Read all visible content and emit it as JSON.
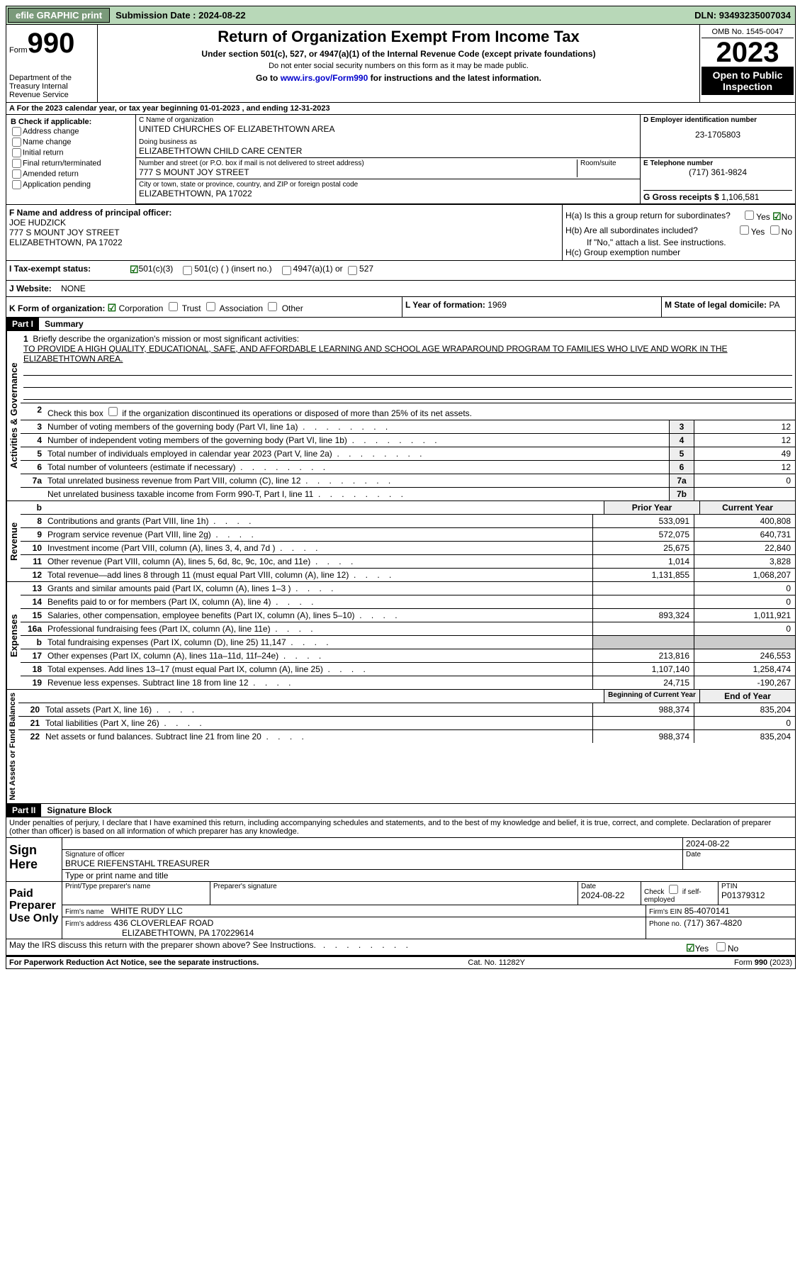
{
  "topbar": {
    "efile": "efile GRAPHIC print",
    "submission_label": "Submission Date :",
    "submission_date": "2024-08-22",
    "dln_label": "DLN:",
    "dln": "93493235007034"
  },
  "header": {
    "form_word": "Form",
    "form_num": "990",
    "dept": "Department of the Treasury Internal Revenue Service",
    "title": "Return of Organization Exempt From Income Tax",
    "sub1": "Under section 501(c), 527, or 4947(a)(1) of the Internal Revenue Code (except private foundations)",
    "sub2": "Do not enter social security numbers on this form as it may be made public.",
    "sub3_pre": "Go to ",
    "sub3_link": "www.irs.gov/Form990",
    "sub3_post": " for instructions and the latest information.",
    "omb": "OMB No. 1545-0047",
    "year": "2023",
    "open": "Open to Public Inspection"
  },
  "rowA": "A For the 2023 calendar year, or tax year beginning 01-01-2023   , and ending 12-31-2023",
  "colB": {
    "title": "B Check if applicable:",
    "opts": [
      "Address change",
      "Name change",
      "Initial return",
      "Final return/terminated",
      "Amended return",
      "Application pending"
    ]
  },
  "colC": {
    "name_label": "C Name of organization",
    "name": "UNITED CHURCHES OF ELIZABETHTOWN AREA",
    "dba_label": "Doing business as",
    "dba": "ELIZABETHTOWN CHILD CARE CENTER",
    "street_label": "Number and street (or P.O. box if mail is not delivered to street address)",
    "room_label": "Room/suite",
    "street": "777 S MOUNT JOY STREET",
    "city_label": "City or town, state or province, country, and ZIP or foreign postal code",
    "city": "ELIZABETHTOWN, PA  17022"
  },
  "colD": {
    "ein_label": "D Employer identification number",
    "ein": "23-1705803",
    "phone_label": "E Telephone number",
    "phone": "(717) 361-9824",
    "gross_label": "G Gross receipts $",
    "gross": "1,106,581"
  },
  "secF": {
    "label": "F  Name and address of principal officer:",
    "name": "JOE HUDZICK",
    "street": "777 S MOUNT JOY STREET",
    "city": "ELIZABETHTOWN, PA  17022"
  },
  "secH": {
    "ha": "H(a)  Is this a group return for subordinates?",
    "hb": "H(b)  Are all subordinates included?",
    "hb_note": "If \"No,\" attach a list. See instructions.",
    "hc": "H(c)  Group exemption number",
    "yes": "Yes",
    "no": "No"
  },
  "secI": {
    "label": "I   Tax-exempt status:",
    "c3": "501(c)(3)",
    "c": "501(c) (  ) (insert no.)",
    "a1": "4947(a)(1) or",
    "s527": "527"
  },
  "secJ": {
    "label": "J   Website:",
    "val": "NONE"
  },
  "secK": {
    "label": "K Form of organization:",
    "corp": "Corporation",
    "trust": "Trust",
    "assoc": "Association",
    "other": "Other"
  },
  "secL": {
    "label": "L Year of formation:",
    "val": "1969"
  },
  "secM": {
    "label": "M State of legal domicile:",
    "val": "PA"
  },
  "part1": {
    "hdr": "Part I",
    "title": "Summary",
    "q1": "Briefly describe the organization's mission or most significant activities:",
    "mission": "TO PROVIDE A HIGH QUALITY, EDUCATIONAL, SAFE, AND AFFORDABLE LEARNING AND SCHOOL AGE WRAPAROUND PROGRAM TO FAMILIES WHO LIVE AND WORK IN THE ELIZABETHTOWN AREA.",
    "q2": "Check this box      if the organization discontinued its operations or disposed of more than 25% of its net assets.",
    "side_ag": "Activities & Governance",
    "side_rev": "Revenue",
    "side_exp": "Expenses",
    "side_na": "Net Assets or Fund Balances",
    "lines_ag": [
      {
        "n": "3",
        "t": "Number of voting members of the governing body (Part VI, line 1a)",
        "box": "3",
        "v": "12"
      },
      {
        "n": "4",
        "t": "Number of independent voting members of the governing body (Part VI, line 1b)",
        "box": "4",
        "v": "12"
      },
      {
        "n": "5",
        "t": "Total number of individuals employed in calendar year 2023 (Part V, line 2a)",
        "box": "5",
        "v": "49"
      },
      {
        "n": "6",
        "t": "Total number of volunteers (estimate if necessary)",
        "box": "6",
        "v": "12"
      },
      {
        "n": "7a",
        "t": "Total unrelated business revenue from Part VIII, column (C), line 12",
        "box": "7a",
        "v": "0"
      },
      {
        "n": "",
        "t": "Net unrelated business taxable income from Form 990-T, Part I, line 11",
        "box": "7b",
        "v": ""
      }
    ],
    "hdr_b": "b",
    "hdr_prior": "Prior Year",
    "hdr_curr": "Current Year",
    "lines_rev": [
      {
        "n": "8",
        "t": "Contributions and grants (Part VIII, line 1h)",
        "p": "533,091",
        "c": "400,808"
      },
      {
        "n": "9",
        "t": "Program service revenue (Part VIII, line 2g)",
        "p": "572,075",
        "c": "640,731"
      },
      {
        "n": "10",
        "t": "Investment income (Part VIII, column (A), lines 3, 4, and 7d )",
        "p": "25,675",
        "c": "22,840"
      },
      {
        "n": "11",
        "t": "Other revenue (Part VIII, column (A), lines 5, 6d, 8c, 9c, 10c, and 11e)",
        "p": "1,014",
        "c": "3,828"
      },
      {
        "n": "12",
        "t": "Total revenue—add lines 8 through 11 (must equal Part VIII, column (A), line 12)",
        "p": "1,131,855",
        "c": "1,068,207"
      }
    ],
    "lines_exp": [
      {
        "n": "13",
        "t": "Grants and similar amounts paid (Part IX, column (A), lines 1–3 )",
        "p": "",
        "c": "0"
      },
      {
        "n": "14",
        "t": "Benefits paid to or for members (Part IX, column (A), line 4)",
        "p": "",
        "c": "0"
      },
      {
        "n": "15",
        "t": "Salaries, other compensation, employee benefits (Part IX, column (A), lines 5–10)",
        "p": "893,324",
        "c": "1,011,921"
      },
      {
        "n": "16a",
        "t": "Professional fundraising fees (Part IX, column (A), line 11e)",
        "p": "",
        "c": "0"
      },
      {
        "n": "b",
        "t": "Total fundraising expenses (Part IX, column (D), line 25) 11,147",
        "p": "grey",
        "c": "grey"
      },
      {
        "n": "17",
        "t": "Other expenses (Part IX, column (A), lines 11a–11d, 11f–24e)",
        "p": "213,816",
        "c": "246,553"
      },
      {
        "n": "18",
        "t": "Total expenses. Add lines 13–17 (must equal Part IX, column (A), line 25)",
        "p": "1,107,140",
        "c": "1,258,474"
      },
      {
        "n": "19",
        "t": "Revenue less expenses. Subtract line 18 from line 12",
        "p": "24,715",
        "c": "-190,267"
      }
    ],
    "hdr_beg": "Beginning of Current Year",
    "hdr_end": "End of Year",
    "lines_na": [
      {
        "n": "20",
        "t": "Total assets (Part X, line 16)",
        "p": "988,374",
        "c": "835,204"
      },
      {
        "n": "21",
        "t": "Total liabilities (Part X, line 26)",
        "p": "",
        "c": "0"
      },
      {
        "n": "22",
        "t": "Net assets or fund balances. Subtract line 21 from line 20",
        "p": "988,374",
        "c": "835,204"
      }
    ]
  },
  "part2": {
    "hdr": "Part II",
    "title": "Signature Block",
    "declare": "Under penalties of perjury, I declare that I have examined this return, including accompanying schedules and statements, and to the best of my knowledge and belief, it is true, correct, and complete. Declaration of preparer (other than officer) is based on all information of which preparer has any knowledge.",
    "sign_here": "Sign Here",
    "sig_officer_label": "Signature of officer",
    "sig_date": "2024-08-22",
    "officer": "BRUCE RIEFENSTAHL  TREASURER",
    "officer_label": "Type or print name and title",
    "paid": "Paid Preparer Use Only",
    "prep_name_label": "Print/Type preparer's name",
    "prep_sig_label": "Preparer's signature",
    "date_label": "Date",
    "date_val": "2024-08-22",
    "check_label": "Check      if self-employed",
    "ptin_label": "PTIN",
    "ptin": "P01379312",
    "firm_name_label": "Firm's name",
    "firm_name": "WHITE RUDY LLC",
    "firm_ein_label": "Firm's EIN",
    "firm_ein": "85-4070141",
    "firm_addr_label": "Firm's address",
    "firm_addr1": "436 CLOVERLEAF ROAD",
    "firm_addr2": "ELIZABETHTOWN, PA  170229614",
    "phone_label": "Phone no.",
    "phone": "(717) 367-4820",
    "discuss": "May the IRS discuss this return with the preparer shown above? See Instructions."
  },
  "footer": {
    "left": "For Paperwork Reduction Act Notice, see the separate instructions.",
    "mid": "Cat. No. 11282Y",
    "right": "Form 990 (2023)"
  }
}
